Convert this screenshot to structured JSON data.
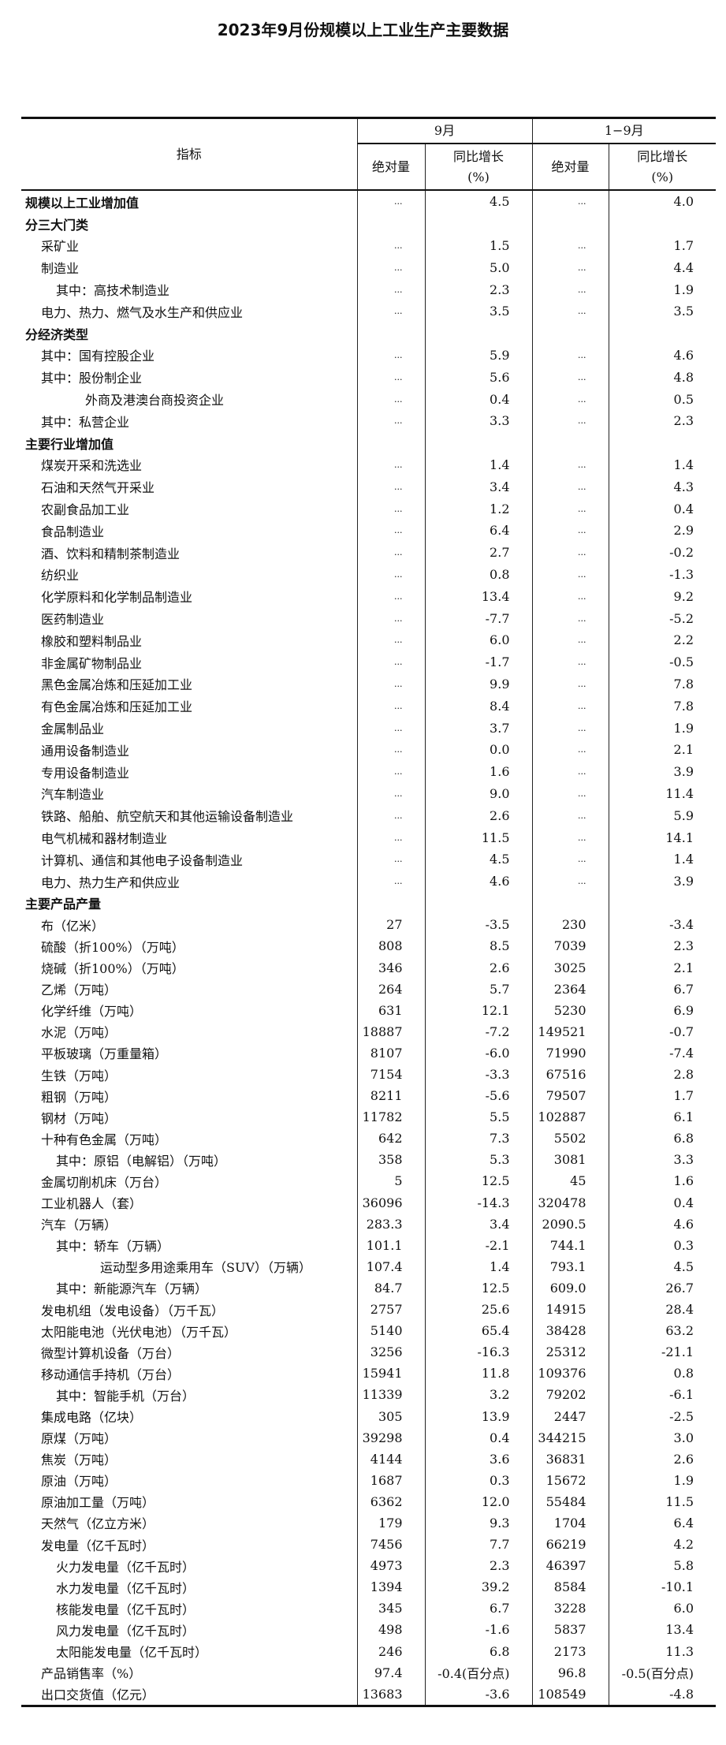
{
  "title": "2023年9月份规模以上工业生产主要数据",
  "header": {
    "indicator": "指标",
    "period1": "9月",
    "period2": "1−9月",
    "absolute": "绝对量",
    "yoy": "同比增长",
    "yoy_unit": "(%)"
  },
  "rows": [
    {
      "label": "规模以上工业增加值",
      "level": 0,
      "bold": true,
      "v": [
        "...",
        "4.5",
        "...",
        "4.0"
      ]
    },
    {
      "label": "分三大门类",
      "level": 0,
      "bold": true,
      "v": [
        "",
        "",
        "",
        ""
      ]
    },
    {
      "label": "采矿业",
      "level": 1,
      "v": [
        "...",
        "1.5",
        "...",
        "1.7"
      ]
    },
    {
      "label": "制造业",
      "level": 1,
      "v": [
        "...",
        "5.0",
        "...",
        "4.4"
      ]
    },
    {
      "label": "其中：高技术制造业",
      "level": 2,
      "v": [
        "...",
        "2.3",
        "...",
        "1.9"
      ]
    },
    {
      "label": "电力、热力、燃气及水生产和供应业",
      "level": 1,
      "v": [
        "...",
        "3.5",
        "...",
        "3.5"
      ]
    },
    {
      "label": "分经济类型",
      "level": 0,
      "bold": true,
      "v": [
        "",
        "",
        "",
        ""
      ]
    },
    {
      "label": "其中：国有控股企业",
      "level": 1,
      "v": [
        "...",
        "5.9",
        "...",
        "4.6"
      ]
    },
    {
      "label": "其中：股份制企业",
      "level": 1,
      "v": [
        "...",
        "5.6",
        "...",
        "4.8"
      ]
    },
    {
      "label": "外商及港澳台商投资企业",
      "level": 3,
      "v": [
        "...",
        "0.4",
        "...",
        "0.5"
      ]
    },
    {
      "label": "其中：私营企业",
      "level": 1,
      "v": [
        "...",
        "3.3",
        "...",
        "2.3"
      ]
    },
    {
      "label": "主要行业增加值",
      "level": 0,
      "bold": true,
      "v": [
        "",
        "",
        "",
        ""
      ]
    },
    {
      "label": "煤炭开采和洗选业",
      "level": 1,
      "v": [
        "...",
        "1.4",
        "...",
        "1.4"
      ]
    },
    {
      "label": "石油和天然气开采业",
      "level": 1,
      "v": [
        "...",
        "3.4",
        "...",
        "4.3"
      ]
    },
    {
      "label": "农副食品加工业",
      "level": 1,
      "v": [
        "...",
        "1.2",
        "...",
        "0.4"
      ]
    },
    {
      "label": "食品制造业",
      "level": 1,
      "v": [
        "...",
        "6.4",
        "...",
        "2.9"
      ]
    },
    {
      "label": "酒、饮料和精制茶制造业",
      "level": 1,
      "v": [
        "...",
        "2.7",
        "...",
        "-0.2"
      ]
    },
    {
      "label": "纺织业",
      "level": 1,
      "v": [
        "...",
        "0.8",
        "...",
        "-1.3"
      ]
    },
    {
      "label": "化学原料和化学制品制造业",
      "level": 1,
      "v": [
        "...",
        "13.4",
        "...",
        "9.2"
      ]
    },
    {
      "label": "医药制造业",
      "level": 1,
      "v": [
        "...",
        "-7.7",
        "...",
        "-5.2"
      ]
    },
    {
      "label": "橡胶和塑料制品业",
      "level": 1,
      "v": [
        "...",
        "6.0",
        "...",
        "2.2"
      ]
    },
    {
      "label": "非金属矿物制品业",
      "level": 1,
      "v": [
        "...",
        "-1.7",
        "...",
        "-0.5"
      ]
    },
    {
      "label": "黑色金属冶炼和压延加工业",
      "level": 1,
      "v": [
        "...",
        "9.9",
        "...",
        "7.8"
      ]
    },
    {
      "label": "有色金属冶炼和压延加工业",
      "level": 1,
      "v": [
        "...",
        "8.4",
        "...",
        "7.8"
      ]
    },
    {
      "label": "金属制品业",
      "level": 1,
      "v": [
        "...",
        "3.7",
        "...",
        "1.9"
      ]
    },
    {
      "label": "通用设备制造业",
      "level": 1,
      "v": [
        "...",
        "0.0",
        "...",
        "2.1"
      ]
    },
    {
      "label": "专用设备制造业",
      "level": 1,
      "v": [
        "...",
        "1.6",
        "...",
        "3.9"
      ]
    },
    {
      "label": "汽车制造业",
      "level": 1,
      "v": [
        "...",
        "9.0",
        "...",
        "11.4"
      ]
    },
    {
      "label": "铁路、船舶、航空航天和其他运输设备制造业",
      "level": 1,
      "v": [
        "...",
        "2.6",
        "...",
        "5.9"
      ]
    },
    {
      "label": "电气机械和器材制造业",
      "level": 1,
      "v": [
        "...",
        "11.5",
        "...",
        "14.1"
      ]
    },
    {
      "label": "计算机、通信和其他电子设备制造业",
      "level": 1,
      "v": [
        "...",
        "4.5",
        "...",
        "1.4"
      ]
    },
    {
      "label": "电力、热力生产和供应业",
      "level": 1,
      "v": [
        "...",
        "4.6",
        "...",
        "3.9"
      ]
    },
    {
      "label": "主要产品产量",
      "level": 0,
      "bold": true,
      "v": [
        "",
        "",
        "",
        ""
      ]
    },
    {
      "label": "布（亿米）",
      "level": 1,
      "p": true,
      "v": [
        "27",
        "-3.5",
        "230",
        "-3.4"
      ]
    },
    {
      "label": "硫酸（折100%）（万吨）",
      "level": 1,
      "p": true,
      "v": [
        "808",
        "8.5",
        "7039",
        "2.3"
      ]
    },
    {
      "label": "烧碱（折100%）（万吨）",
      "level": 1,
      "p": true,
      "v": [
        "346",
        "2.6",
        "3025",
        "2.1"
      ]
    },
    {
      "label": "乙烯（万吨）",
      "level": 1,
      "p": true,
      "v": [
        "264",
        "5.7",
        "2364",
        "6.7"
      ]
    },
    {
      "label": "化学纤维（万吨）",
      "level": 1,
      "p": true,
      "v": [
        "631",
        "12.1",
        "5230",
        "6.9"
      ]
    },
    {
      "label": "水泥（万吨）",
      "level": 1,
      "p": true,
      "v": [
        "18887",
        "-7.2",
        "149521",
        "-0.7"
      ]
    },
    {
      "label": "平板玻璃（万重量箱）",
      "level": 1,
      "p": true,
      "v": [
        "8107",
        "-6.0",
        "71990",
        "-7.4"
      ]
    },
    {
      "label": "生铁（万吨）",
      "level": 1,
      "p": true,
      "v": [
        "7154",
        "-3.3",
        "67516",
        "2.8"
      ]
    },
    {
      "label": "粗钢（万吨）",
      "level": 1,
      "p": true,
      "v": [
        "8211",
        "-5.6",
        "79507",
        "1.7"
      ]
    },
    {
      "label": "钢材（万吨）",
      "level": 1,
      "p": true,
      "v": [
        "11782",
        "5.5",
        "102887",
        "6.1"
      ]
    },
    {
      "label": "十种有色金属（万吨）",
      "level": 1,
      "p": true,
      "v": [
        "642",
        "7.3",
        "5502",
        "6.8"
      ]
    },
    {
      "label": "其中：原铝（电解铝）（万吨）",
      "level": 2,
      "p": true,
      "v": [
        "358",
        "5.3",
        "3081",
        "3.3"
      ]
    },
    {
      "label": "金属切削机床（万台）",
      "level": 1,
      "p": true,
      "v": [
        "5",
        "12.5",
        "45",
        "1.6"
      ]
    },
    {
      "label": "工业机器人（套）",
      "level": 1,
      "p": true,
      "v": [
        "36096",
        "-14.3",
        "320478",
        "0.4"
      ]
    },
    {
      "label": "汽车（万辆）",
      "level": 1,
      "p": true,
      "v": [
        "283.3",
        "3.4",
        "2090.5",
        "4.6"
      ]
    },
    {
      "label": "其中：轿车（万辆）",
      "level": 2,
      "p": true,
      "v": [
        "101.1",
        "-2.1",
        "744.1",
        "0.3"
      ]
    },
    {
      "label": "运动型多用途乘用车（SUV）（万辆）",
      "level": 4,
      "p": true,
      "v": [
        "107.4",
        "1.4",
        "793.1",
        "4.5"
      ]
    },
    {
      "label": "其中：新能源汽车（万辆）",
      "level": 2,
      "p": true,
      "v": [
        "84.7",
        "12.5",
        "609.0",
        "26.7"
      ]
    },
    {
      "label": "发电机组（发电设备）（万千瓦）",
      "level": 1,
      "p": true,
      "v": [
        "2757",
        "25.6",
        "14915",
        "28.4"
      ]
    },
    {
      "label": "太阳能电池（光伏电池）（万千瓦）",
      "level": 1,
      "p": true,
      "v": [
        "5140",
        "65.4",
        "38428",
        "63.2"
      ]
    },
    {
      "label": "微型计算机设备（万台）",
      "level": 1,
      "p": true,
      "v": [
        "3256",
        "-16.3",
        "25312",
        "-21.1"
      ]
    },
    {
      "label": "移动通信手持机（万台）",
      "level": 1,
      "p": true,
      "v": [
        "15941",
        "11.8",
        "109376",
        "0.8"
      ]
    },
    {
      "label": "其中：智能手机（万台）",
      "level": 2,
      "p": true,
      "v": [
        "11339",
        "3.2",
        "79202",
        "-6.1"
      ]
    },
    {
      "label": "集成电路（亿块）",
      "level": 1,
      "p": true,
      "v": [
        "305",
        "13.9",
        "2447",
        "-2.5"
      ]
    },
    {
      "label": "原煤（万吨）",
      "level": 1,
      "p": true,
      "v": [
        "39298",
        "0.4",
        "344215",
        "3.0"
      ]
    },
    {
      "label": "焦炭（万吨）",
      "level": 1,
      "p": true,
      "v": [
        "4144",
        "3.6",
        "36831",
        "2.6"
      ]
    },
    {
      "label": "原油（万吨）",
      "level": 1,
      "p": true,
      "v": [
        "1687",
        "0.3",
        "15672",
        "1.9"
      ]
    },
    {
      "label": "原油加工量（万吨）",
      "level": 1,
      "p": true,
      "v": [
        "6362",
        "12.0",
        "55484",
        "11.5"
      ]
    },
    {
      "label": "天然气（亿立方米）",
      "level": 1,
      "p": true,
      "v": [
        "179",
        "9.3",
        "1704",
        "6.4"
      ]
    },
    {
      "label": "发电量（亿千瓦时）",
      "level": 1,
      "p": true,
      "v": [
        "7456",
        "7.7",
        "66219",
        "4.2"
      ]
    },
    {
      "label": "火力发电量（亿千瓦时）",
      "level": 2,
      "p": true,
      "v": [
        "4973",
        "2.3",
        "46397",
        "5.8"
      ]
    },
    {
      "label": "水力发电量（亿千瓦时）",
      "level": 2,
      "p": true,
      "v": [
        "1394",
        "39.2",
        "8584",
        "-10.1"
      ]
    },
    {
      "label": "核能发电量（亿千瓦时）",
      "level": 2,
      "p": true,
      "v": [
        "345",
        "6.7",
        "3228",
        "6.0"
      ]
    },
    {
      "label": "风力发电量（亿千瓦时）",
      "level": 2,
      "p": true,
      "v": [
        "498",
        "-1.6",
        "5837",
        "13.4"
      ]
    },
    {
      "label": "太阳能发电量（亿千瓦时）",
      "level": 2,
      "p": true,
      "v": [
        "246",
        "6.8",
        "2173",
        "11.3"
      ]
    },
    {
      "label": "产品销售率（%）",
      "level": 1,
      "p": true,
      "v": [
        "97.4",
        "-0.4(百分点)",
        "96.8",
        "-0.5(百分点)"
      ]
    },
    {
      "label": "出口交货值（亿元）",
      "level": 1,
      "p": true,
      "v": [
        "13683",
        "-3.6",
        "108549",
        "-4.8"
      ]
    }
  ]
}
